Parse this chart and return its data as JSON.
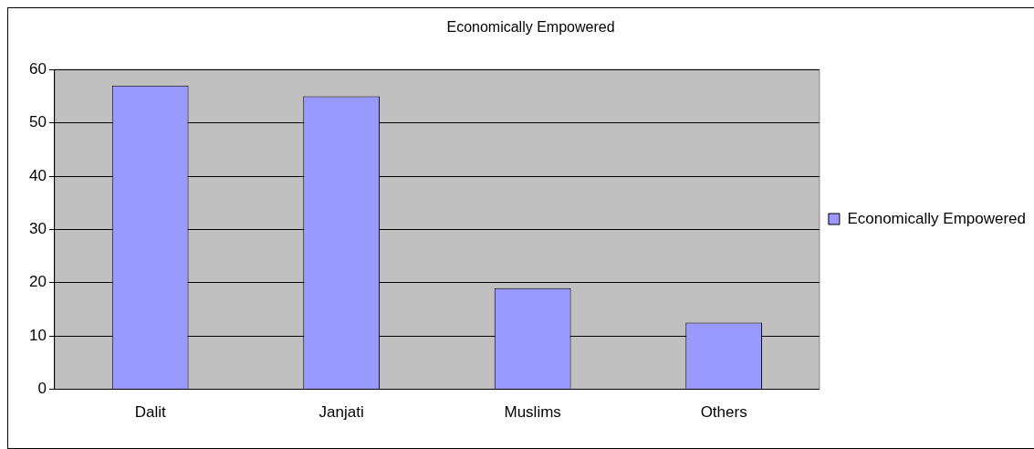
{
  "chart_data": {
    "type": "bar",
    "title": "Economically Empowered",
    "categories": [
      "Dalit",
      "Janjati",
      "Muslims",
      "Others"
    ],
    "series": [
      {
        "name": "Economically Empowered",
        "color": "#9999ff",
        "values": [
          57,
          55,
          19,
          12.5
        ]
      }
    ],
    "ylim": [
      0,
      60
    ],
    "yticks": [
      0,
      10,
      20,
      30,
      40,
      50,
      60
    ],
    "grid": "y",
    "legend": "right"
  }
}
